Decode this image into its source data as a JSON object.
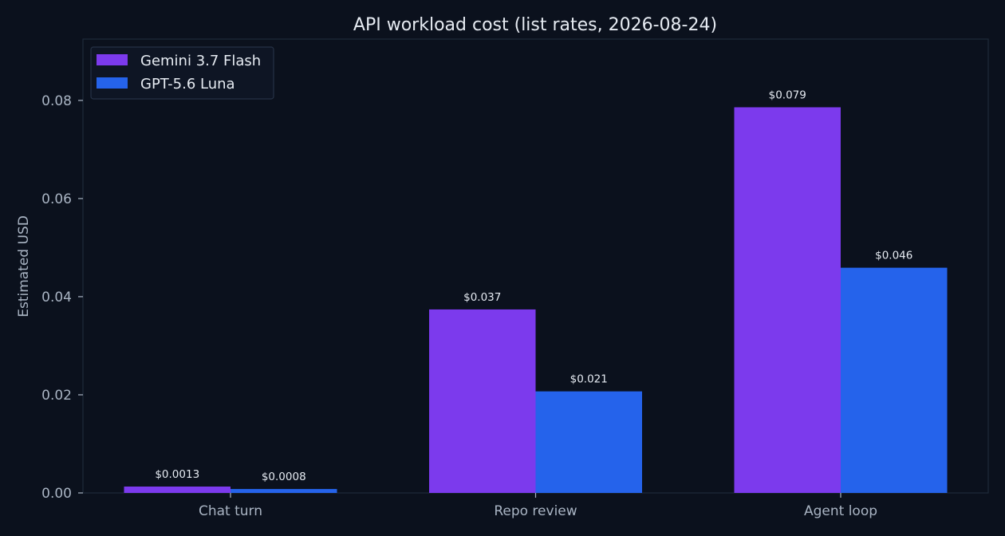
{
  "chart_data": {
    "type": "bar",
    "title": "API workload cost (list rates, 2026-08-24)",
    "xlabel": "",
    "ylabel": "Estimated USD",
    "categories": [
      "Chat turn",
      "Repo review",
      "Agent loop"
    ],
    "series": [
      {
        "name": "Gemini 3.7 Flash",
        "color": "#7c3aed",
        "values": [
          0.0013,
          0.0374,
          0.0786
        ],
        "labels": [
          "$0.0013",
          "$0.037",
          "$0.079"
        ]
      },
      {
        "name": "GPT-5.6 Luna",
        "color": "#2563eb",
        "values": [
          0.0008,
          0.0207,
          0.0459
        ],
        "labels": [
          "$0.0008",
          "$0.021",
          "$0.046"
        ]
      }
    ],
    "ylim": [
      0,
      0.0925
    ],
    "yticks": [
      0,
      0.02,
      0.04,
      0.06,
      0.08
    ],
    "ytick_labels": [
      "0.00",
      "0.02",
      "0.04",
      "0.06",
      "0.08"
    ],
    "grid": false,
    "legend_position": "top-left"
  }
}
